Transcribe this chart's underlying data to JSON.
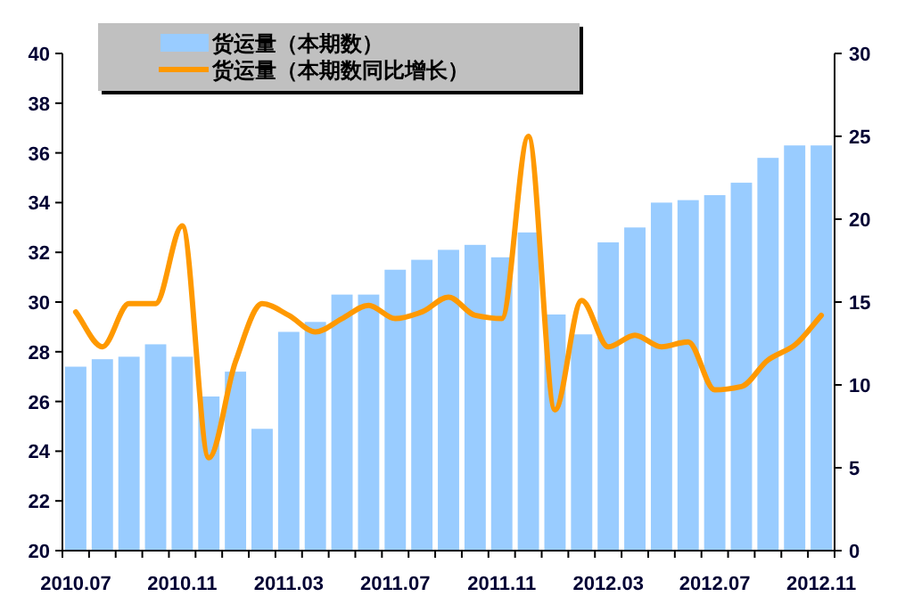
{
  "chart_data": {
    "type": "bar",
    "categories": [
      "2010.07",
      null,
      null,
      null,
      "2010.11",
      null,
      null,
      null,
      "2011.03",
      null,
      null,
      null,
      "2011.07",
      null,
      null,
      null,
      "2011.11",
      null,
      null,
      null,
      "2012.03",
      null,
      null,
      null,
      "2012.07",
      null,
      null,
      null,
      "2012.11"
    ],
    "series": [
      {
        "name": "货运量（本期数）",
        "color": "#99ccff",
        "values": [
          27.4,
          27.7,
          27.8,
          28.3,
          27.8,
          26.2,
          27.2,
          24.9,
          28.8,
          29.2,
          30.3,
          30.3,
          31.3,
          31.7,
          32.1,
          32.3,
          31.8,
          32.8,
          29.5,
          28.7,
          32.4,
          33.0,
          34.0,
          34.1,
          34.3,
          34.8,
          35.8,
          36.3,
          36.3
        ]
      },
      {
        "name": "货运量（本期数同比增长）",
        "type": "line",
        "axis": "y2",
        "color": "#ff9900",
        "values": [
          14.4,
          12.3,
          14.9,
          14.9,
          19.6,
          5.6,
          11.4,
          14.9,
          14.2,
          13.2,
          14.0,
          14.8,
          14.0,
          14.4,
          15.3,
          14.2,
          14.0,
          25.0,
          8.5,
          15.1,
          12.3,
          13.0,
          12.3,
          12.6,
          9.7,
          9.9,
          11.5,
          12.4,
          14.2
        ]
      }
    ],
    "ylim": [
      20,
      40
    ],
    "yticks": [
      20,
      22,
      24,
      26,
      28,
      30,
      32,
      34,
      36,
      38,
      40
    ],
    "y2lim": [
      0,
      30
    ],
    "y2ticks": [
      0,
      5,
      10,
      15,
      20,
      25,
      30
    ],
    "legend": "top"
  }
}
